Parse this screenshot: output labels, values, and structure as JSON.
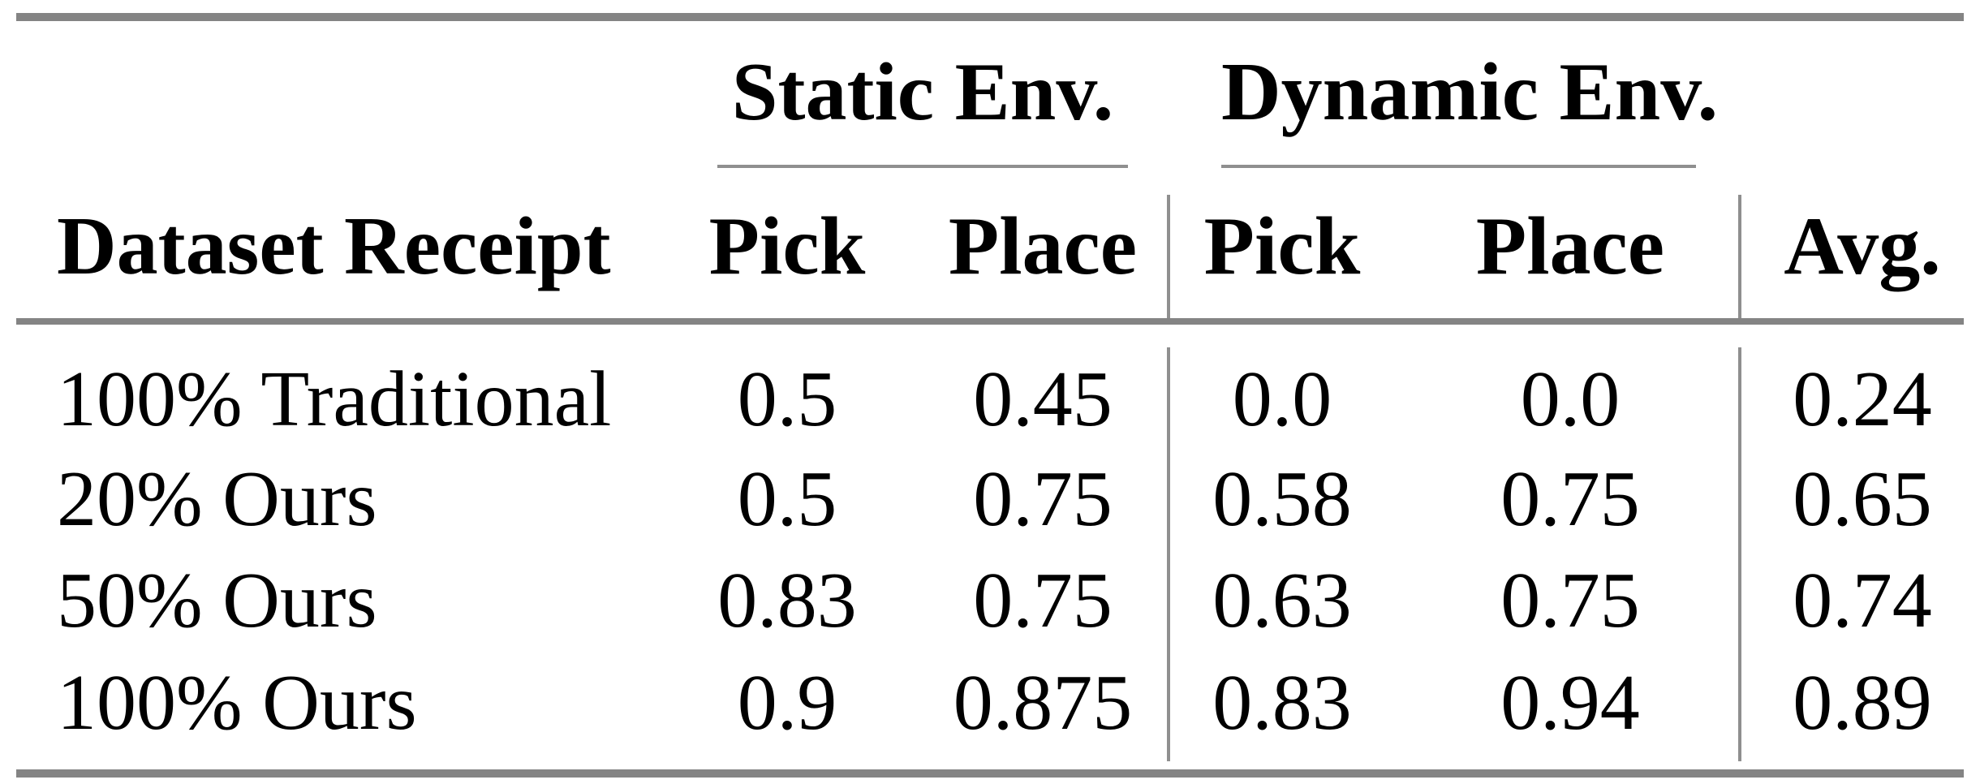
{
  "figure": {
    "background": "#ffffff",
    "text_color": "#000000",
    "rule_color_thick": "#848484",
    "rule_color_thin": "#8f8f8f"
  },
  "table": {
    "group_headers": {
      "static": "Static Env.",
      "dynamic": "Dynamic Env."
    },
    "column_headers": {
      "dataset": "Dataset Receipt",
      "static_pick": "Pick",
      "static_place": "Place",
      "dynamic_pick": "Pick",
      "dynamic_place": "Place",
      "avg": "Avg."
    },
    "rows": [
      [
        "100% Traditional",
        "0.5",
        "0.45",
        "0.0",
        "0.0",
        "0.24"
      ],
      [
        "20% Ours",
        "0.5",
        "0.75",
        "0.58",
        "0.75",
        "0.65"
      ],
      [
        "50% Ours",
        "0.83",
        "0.75",
        "0.63",
        "0.75",
        "0.74"
      ],
      [
        "100% Ours",
        "0.9",
        "0.875",
        "0.83",
        "0.94",
        "0.89"
      ]
    ]
  },
  "chart_data": {
    "type": "table",
    "title": "",
    "column_groups": [
      {
        "label": "Static Env.",
        "columns": [
          "Pick",
          "Place"
        ]
      },
      {
        "label": "Dynamic Env.",
        "columns": [
          "Pick",
          "Place"
        ]
      }
    ],
    "columns": [
      "Dataset Receipt",
      "Static Pick",
      "Static Place",
      "Dynamic Pick",
      "Dynamic Place",
      "Avg."
    ],
    "rows": [
      {
        "dataset_receipt": "100% Traditional",
        "static_pick": 0.5,
        "static_place": 0.45,
        "dynamic_pick": 0.0,
        "dynamic_place": 0.0,
        "avg": 0.24
      },
      {
        "dataset_receipt": "20% Ours",
        "static_pick": 0.5,
        "static_place": 0.75,
        "dynamic_pick": 0.58,
        "dynamic_place": 0.75,
        "avg": 0.65
      },
      {
        "dataset_receipt": "50% Ours",
        "static_pick": 0.83,
        "static_place": 0.75,
        "dynamic_pick": 0.63,
        "dynamic_place": 0.75,
        "avg": 0.74
      },
      {
        "dataset_receipt": "100% Ours",
        "static_pick": 0.9,
        "static_place": 0.875,
        "dynamic_pick": 0.83,
        "dynamic_place": 0.94,
        "avg": 0.89
      }
    ]
  }
}
